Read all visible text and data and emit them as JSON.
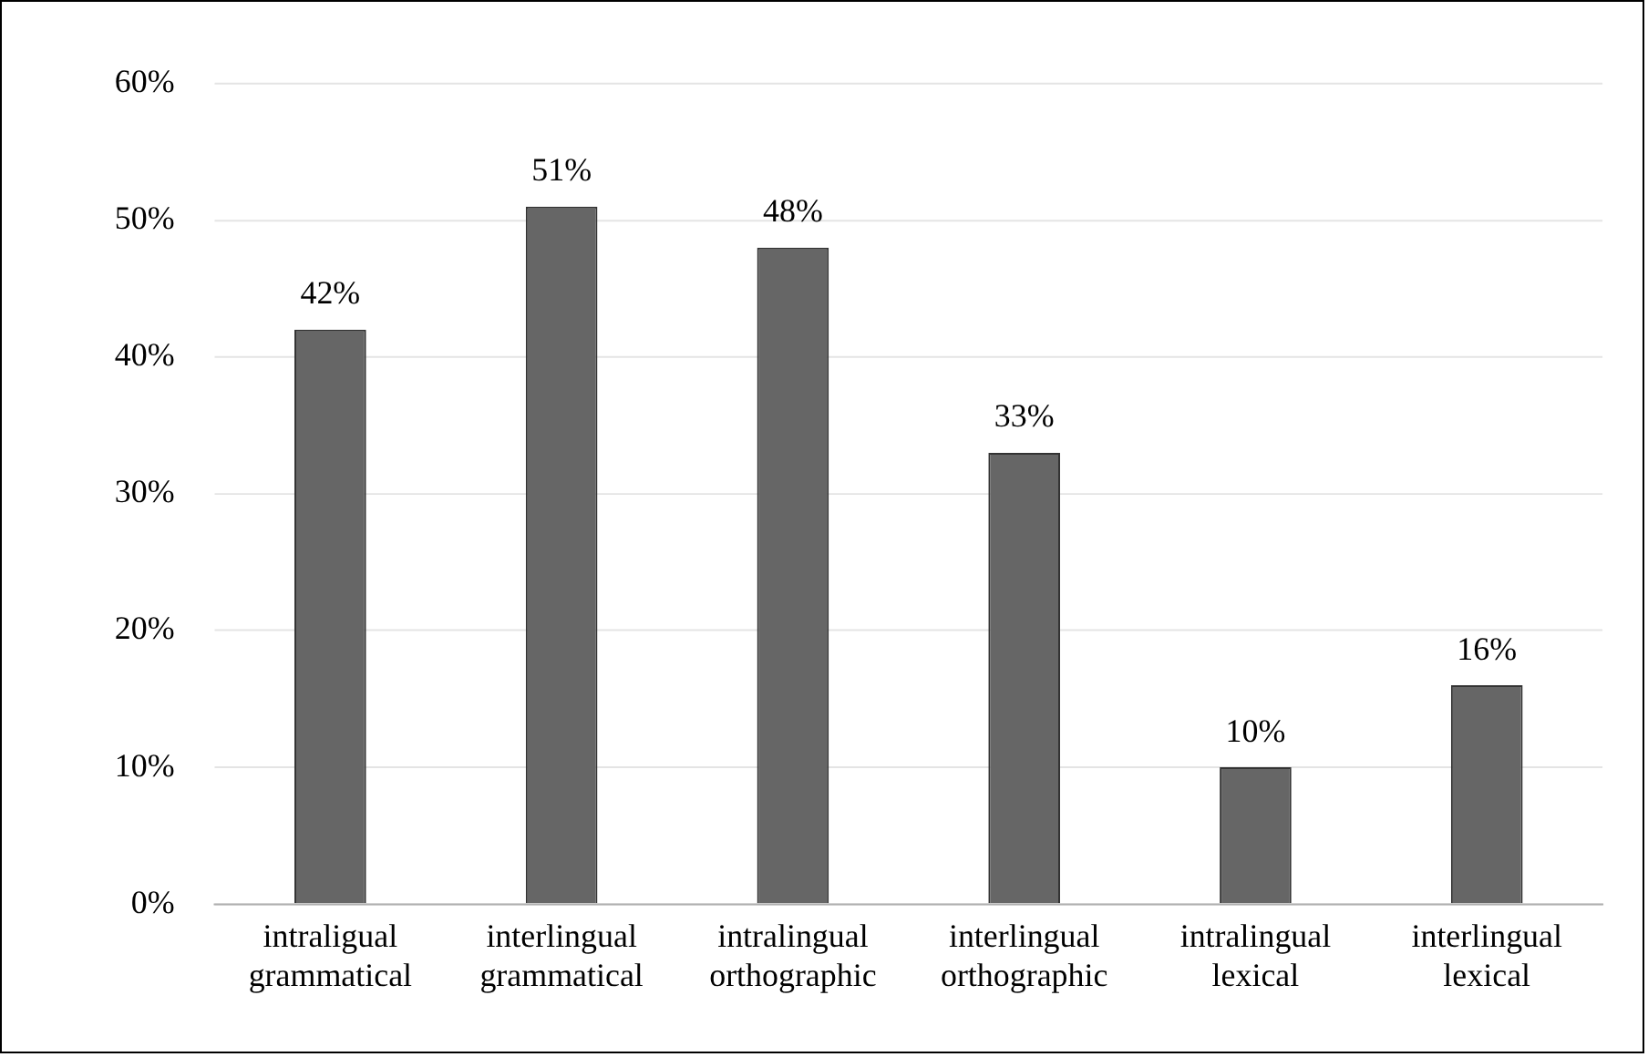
{
  "chart_data": {
    "type": "bar",
    "categories": [
      "intraligual grammatical",
      "interlingual grammatical",
      "intralingual orthographic",
      "interlingual orthographic",
      "intralingual lexical",
      "interlingual lexical"
    ],
    "values": [
      42,
      51,
      48,
      33,
      10,
      16
    ],
    "value_labels": [
      "42%",
      "51%",
      "48%",
      "33%",
      "10%",
      "16%"
    ],
    "color": "#666666",
    "ylim": [
      0,
      60
    ],
    "yticks": [
      {
        "value": 0,
        "label": "0%"
      },
      {
        "value": 10,
        "label": "10%"
      },
      {
        "value": 20,
        "label": "20%"
      },
      {
        "value": 30,
        "label": "30%"
      },
      {
        "value": 40,
        "label": "40%"
      },
      {
        "value": 50,
        "label": "50%"
      },
      {
        "value": 60,
        "label": "60%"
      }
    ],
    "grid": "y"
  }
}
